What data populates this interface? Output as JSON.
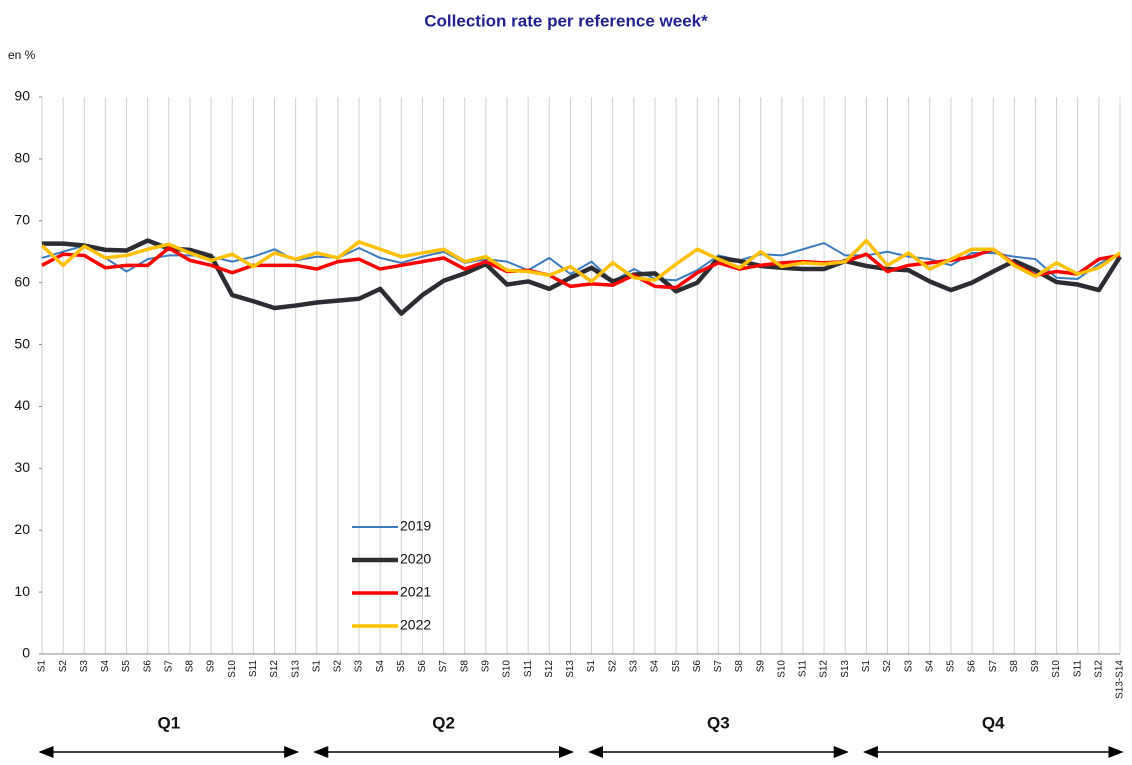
{
  "chart_data": {
    "type": "line",
    "title": "Collection rate per reference week*",
    "y_label": "en %",
    "categories": [
      "S1",
      "S2",
      "S3",
      "S4",
      "S5",
      "S6",
      "S7",
      "S8",
      "S9",
      "S10",
      "S11",
      "S12",
      "S13",
      "S1",
      "S2",
      "S3",
      "S4",
      "S5",
      "S6",
      "S7",
      "S8",
      "S9",
      "S10",
      "S11",
      "S12",
      "S13",
      "S1",
      "S2",
      "S3",
      "S4",
      "S5",
      "S6",
      "S7",
      "S8",
      "S9",
      "S10",
      "S11",
      "S12",
      "S13",
      "S1",
      "S2",
      "S3",
      "S4",
      "S5",
      "S6",
      "S7",
      "S8",
      "S9",
      "S10",
      "S11",
      "S12",
      "S13-S14"
    ],
    "quarters": [
      "Q1",
      "Q2",
      "Q3",
      "Q4"
    ],
    "ylim": [
      0,
      90
    ],
    "yticks": [
      0,
      10,
      20,
      30,
      40,
      50,
      60,
      70,
      80,
      90
    ],
    "series": [
      {
        "name": "2019",
        "color": "#3a7bbf",
        "values": [
          64,
          65,
          66,
          64,
          61.8,
          63.8,
          64.4,
          64.4,
          64.2,
          63.4,
          64.2,
          65.4,
          63.6,
          64.2,
          64,
          65.6,
          64,
          63.2,
          64.2,
          65,
          63.2,
          63.8,
          63.4,
          62,
          64,
          61.4,
          63.4,
          60.2,
          62.2,
          60.6,
          60.4,
          62,
          64.4,
          63.6,
          64.6,
          64.4,
          65.4,
          66.4,
          64.4,
          64.4,
          65,
          64.2,
          63.8,
          62.8,
          64.8,
          64.8,
          64.2,
          63.8,
          60.8,
          60.6,
          63,
          64.8
        ]
      },
      {
        "name": "2020",
        "color": "#2b2d33",
        "values": [
          66.3,
          66.3,
          66,
          65.3,
          65.2,
          66.8,
          65.5,
          65.3,
          64.3,
          58,
          57,
          55.9,
          56.3,
          56.8,
          57.1,
          57.4,
          59,
          55,
          58,
          60.3,
          61.5,
          63,
          59.7,
          60.2,
          59,
          60.8,
          62.4,
          60.2,
          61.3,
          61.5,
          58.6,
          60,
          64,
          63.5,
          62.7,
          62.4,
          62.2,
          62.2,
          63.5,
          62.7,
          62.2,
          62,
          60.2,
          58.8,
          60,
          61.8,
          63.5,
          62,
          60.1,
          59.7,
          58.8,
          64.2
        ]
      },
      {
        "name": "2021",
        "color": "#ff0000",
        "values": [
          62.8,
          64.6,
          64.4,
          62.4,
          62.8,
          62.8,
          65.6,
          63.6,
          62.8,
          61.6,
          62.8,
          62.8,
          62.8,
          62.2,
          63.4,
          63.8,
          62.2,
          62.8,
          63.4,
          64,
          62.2,
          63.4,
          61.8,
          62,
          61.2,
          59.4,
          59.8,
          59.6,
          61.2,
          59.4,
          59.2,
          61.6,
          63.2,
          62.2,
          62.8,
          63.2,
          63.4,
          63.2,
          63.4,
          64.6,
          61.8,
          62.8,
          63.2,
          63.6,
          64.2,
          65.4,
          63,
          61.2,
          61.8,
          61.4,
          63.8,
          64.4
        ]
      },
      {
        "name": "2022",
        "color": "#ffc000",
        "values": [
          66,
          62.8,
          65.9,
          64,
          64.4,
          65.4,
          66.2,
          64.8,
          63.6,
          64.6,
          62.6,
          64.8,
          63.8,
          64.8,
          64,
          66.6,
          65.4,
          64.2,
          64.8,
          65.4,
          63.4,
          64.2,
          62,
          61.8,
          61.2,
          62.6,
          60.2,
          63.2,
          60.8,
          60.4,
          63,
          65.4,
          63.8,
          62.4,
          65,
          62.6,
          63.2,
          63,
          63.4,
          66.8,
          62.8,
          64.8,
          62.2,
          63.8,
          65.4,
          65.4,
          62.8,
          61,
          63.2,
          61.4,
          62.4,
          64.8
        ]
      }
    ]
  }
}
